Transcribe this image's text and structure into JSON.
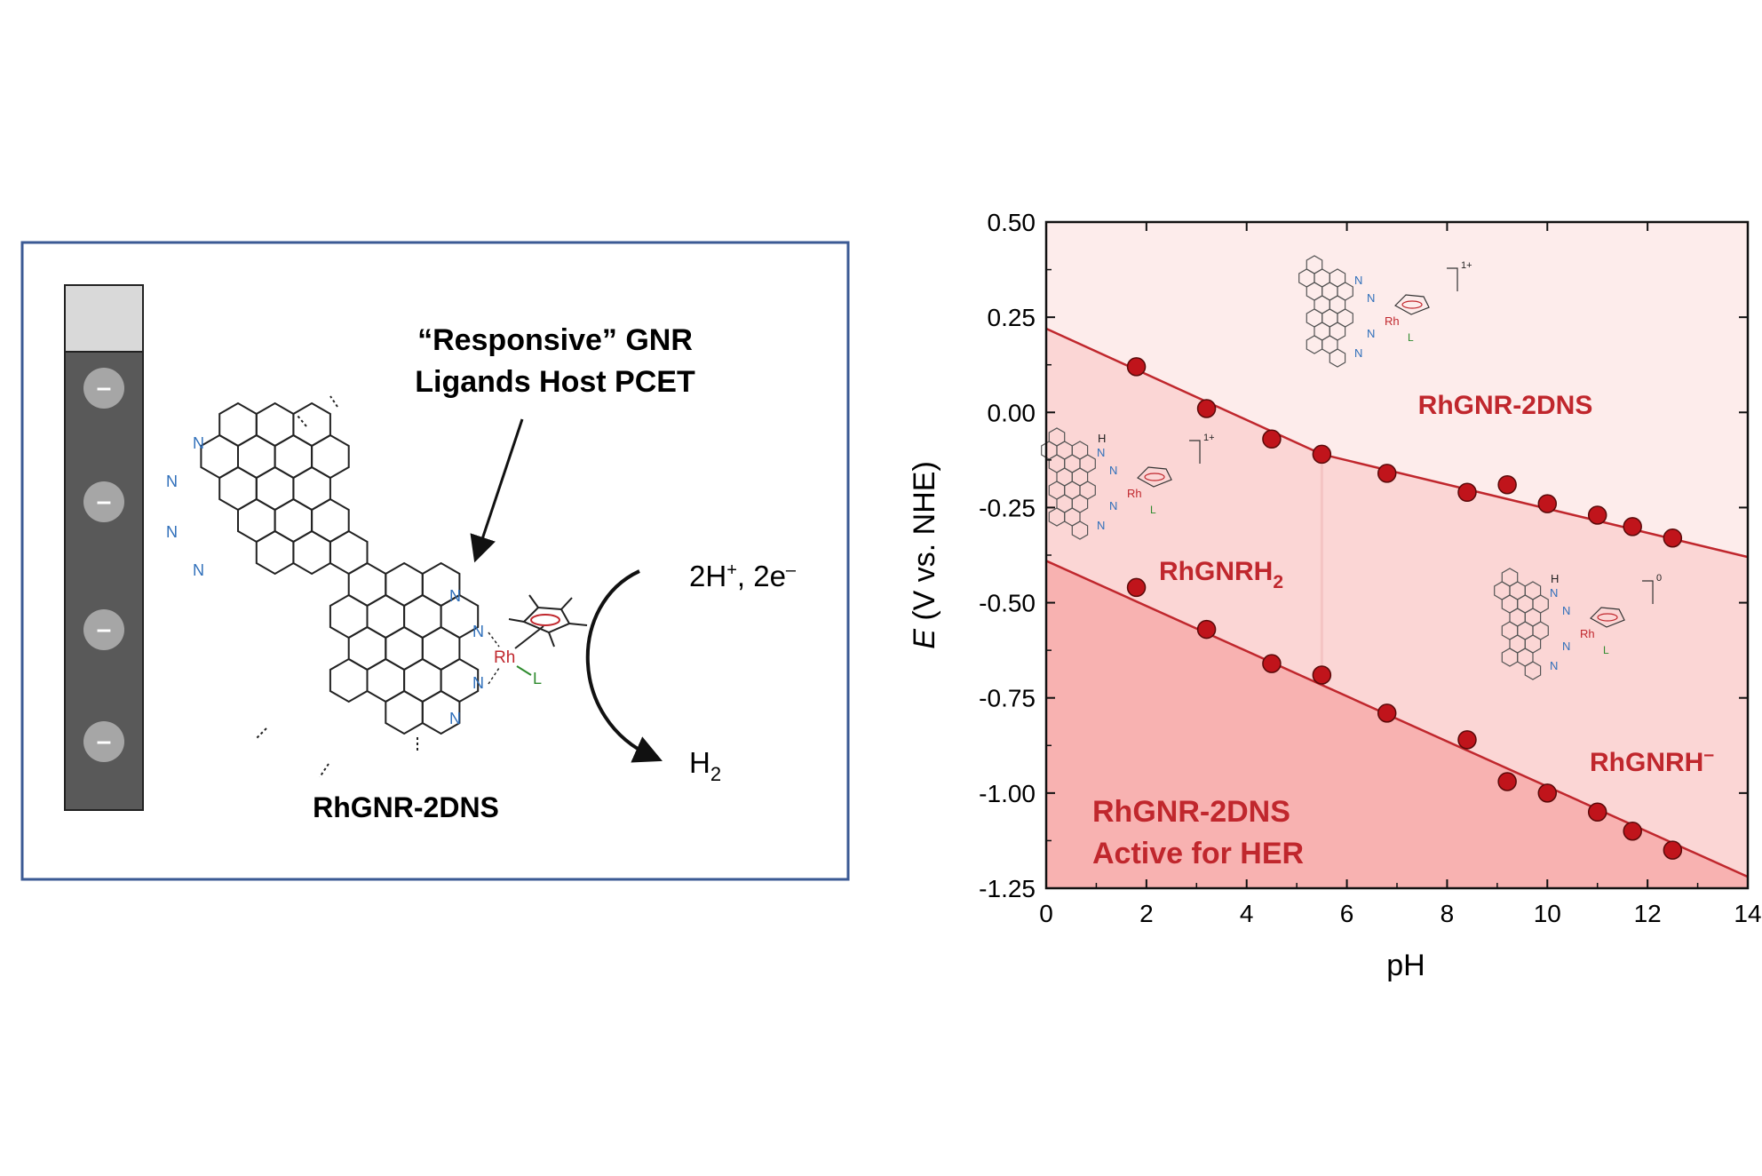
{
  "scheme": {
    "title_line1": "“Responsive” GNR",
    "title_line2": "Ligands Host PCET",
    "molecule_label": "RhGNR-2DNS",
    "reagents_main": "2H",
    "reagents_sup": "+",
    "reagents_rest": ", 2e",
    "reagents_minus": "–",
    "product_main": "H",
    "product_sub": "2",
    "electrode_charge_symbol": "–",
    "atom_N": "N",
    "atom_Rh": "Rh",
    "atom_L": "L",
    "atom_H": "H"
  },
  "chart_data": {
    "type": "scatter",
    "xlabel": "pH",
    "ylabel_italic": "E",
    "ylabel_rest": " (V vs. NHE)",
    "xlim": [
      0,
      14
    ],
    "ylim": [
      -1.25,
      0.5
    ],
    "xticks": [
      "0",
      "2",
      "4",
      "6",
      "8",
      "10",
      "12",
      "14"
    ],
    "yticks": [
      "0.50",
      "0.25",
      "0.00",
      "-0.25",
      "-0.50",
      "-0.75",
      "-1.00",
      "-1.25"
    ],
    "series": [
      {
        "name": "upper transition",
        "x": [
          1.8,
          3.2,
          4.5,
          5.5,
          6.8,
          8.4,
          9.2,
          10.0,
          11.0,
          11.7,
          12.5
        ],
        "y": [
          0.12,
          0.01,
          -0.07,
          -0.11,
          -0.16,
          -0.21,
          -0.19,
          -0.24,
          -0.27,
          -0.3,
          -0.33
        ]
      },
      {
        "name": "lower transition",
        "x": [
          1.8,
          3.2,
          4.5,
          5.5,
          6.8,
          8.4,
          9.2,
          10.0,
          11.0,
          11.7,
          12.5
        ],
        "y": [
          -0.46,
          -0.57,
          -0.66,
          -0.69,
          -0.79,
          -0.86,
          -0.97,
          -1.0,
          -1.05,
          -1.1,
          -1.15
        ]
      }
    ],
    "fit_lines": [
      {
        "name": "upper fit segment 1",
        "x": [
          0,
          5.5
        ],
        "y": [
          0.22,
          -0.11
        ]
      },
      {
        "name": "upper fit segment 2",
        "x": [
          5.5,
          14
        ],
        "y": [
          -0.11,
          -0.38
        ]
      },
      {
        "name": "lower fit",
        "x": [
          0,
          14
        ],
        "y": [
          -0.39,
          -1.22
        ]
      }
    ],
    "boundary_pH": 5.5,
    "regions": {
      "top": "RhGNR-2DNS",
      "middle_left_main": "RhGNRH",
      "middle_left_sub": "2",
      "middle_right_main": "RhGNRH",
      "middle_right_sup": "–",
      "bottom_line1": "RhGNR-2DNS",
      "bottom_line2": "Active for HER"
    },
    "inset_charges": {
      "top": "1+",
      "middle_left": "1+",
      "middle_right": "0"
    },
    "colors": {
      "top_region": "#fdeceb",
      "middle_region": "#fbd6d5",
      "bottom_region": "#f8b2b1",
      "line": "#c0272d",
      "marker": "#c0141b",
      "label_red": "#c0272d",
      "nitrogen_blue": "#2f6fba",
      "rhodium_red": "#c0272d",
      "ligand_green": "#2e8b2e",
      "frame_blue": "#3b5a94"
    }
  }
}
